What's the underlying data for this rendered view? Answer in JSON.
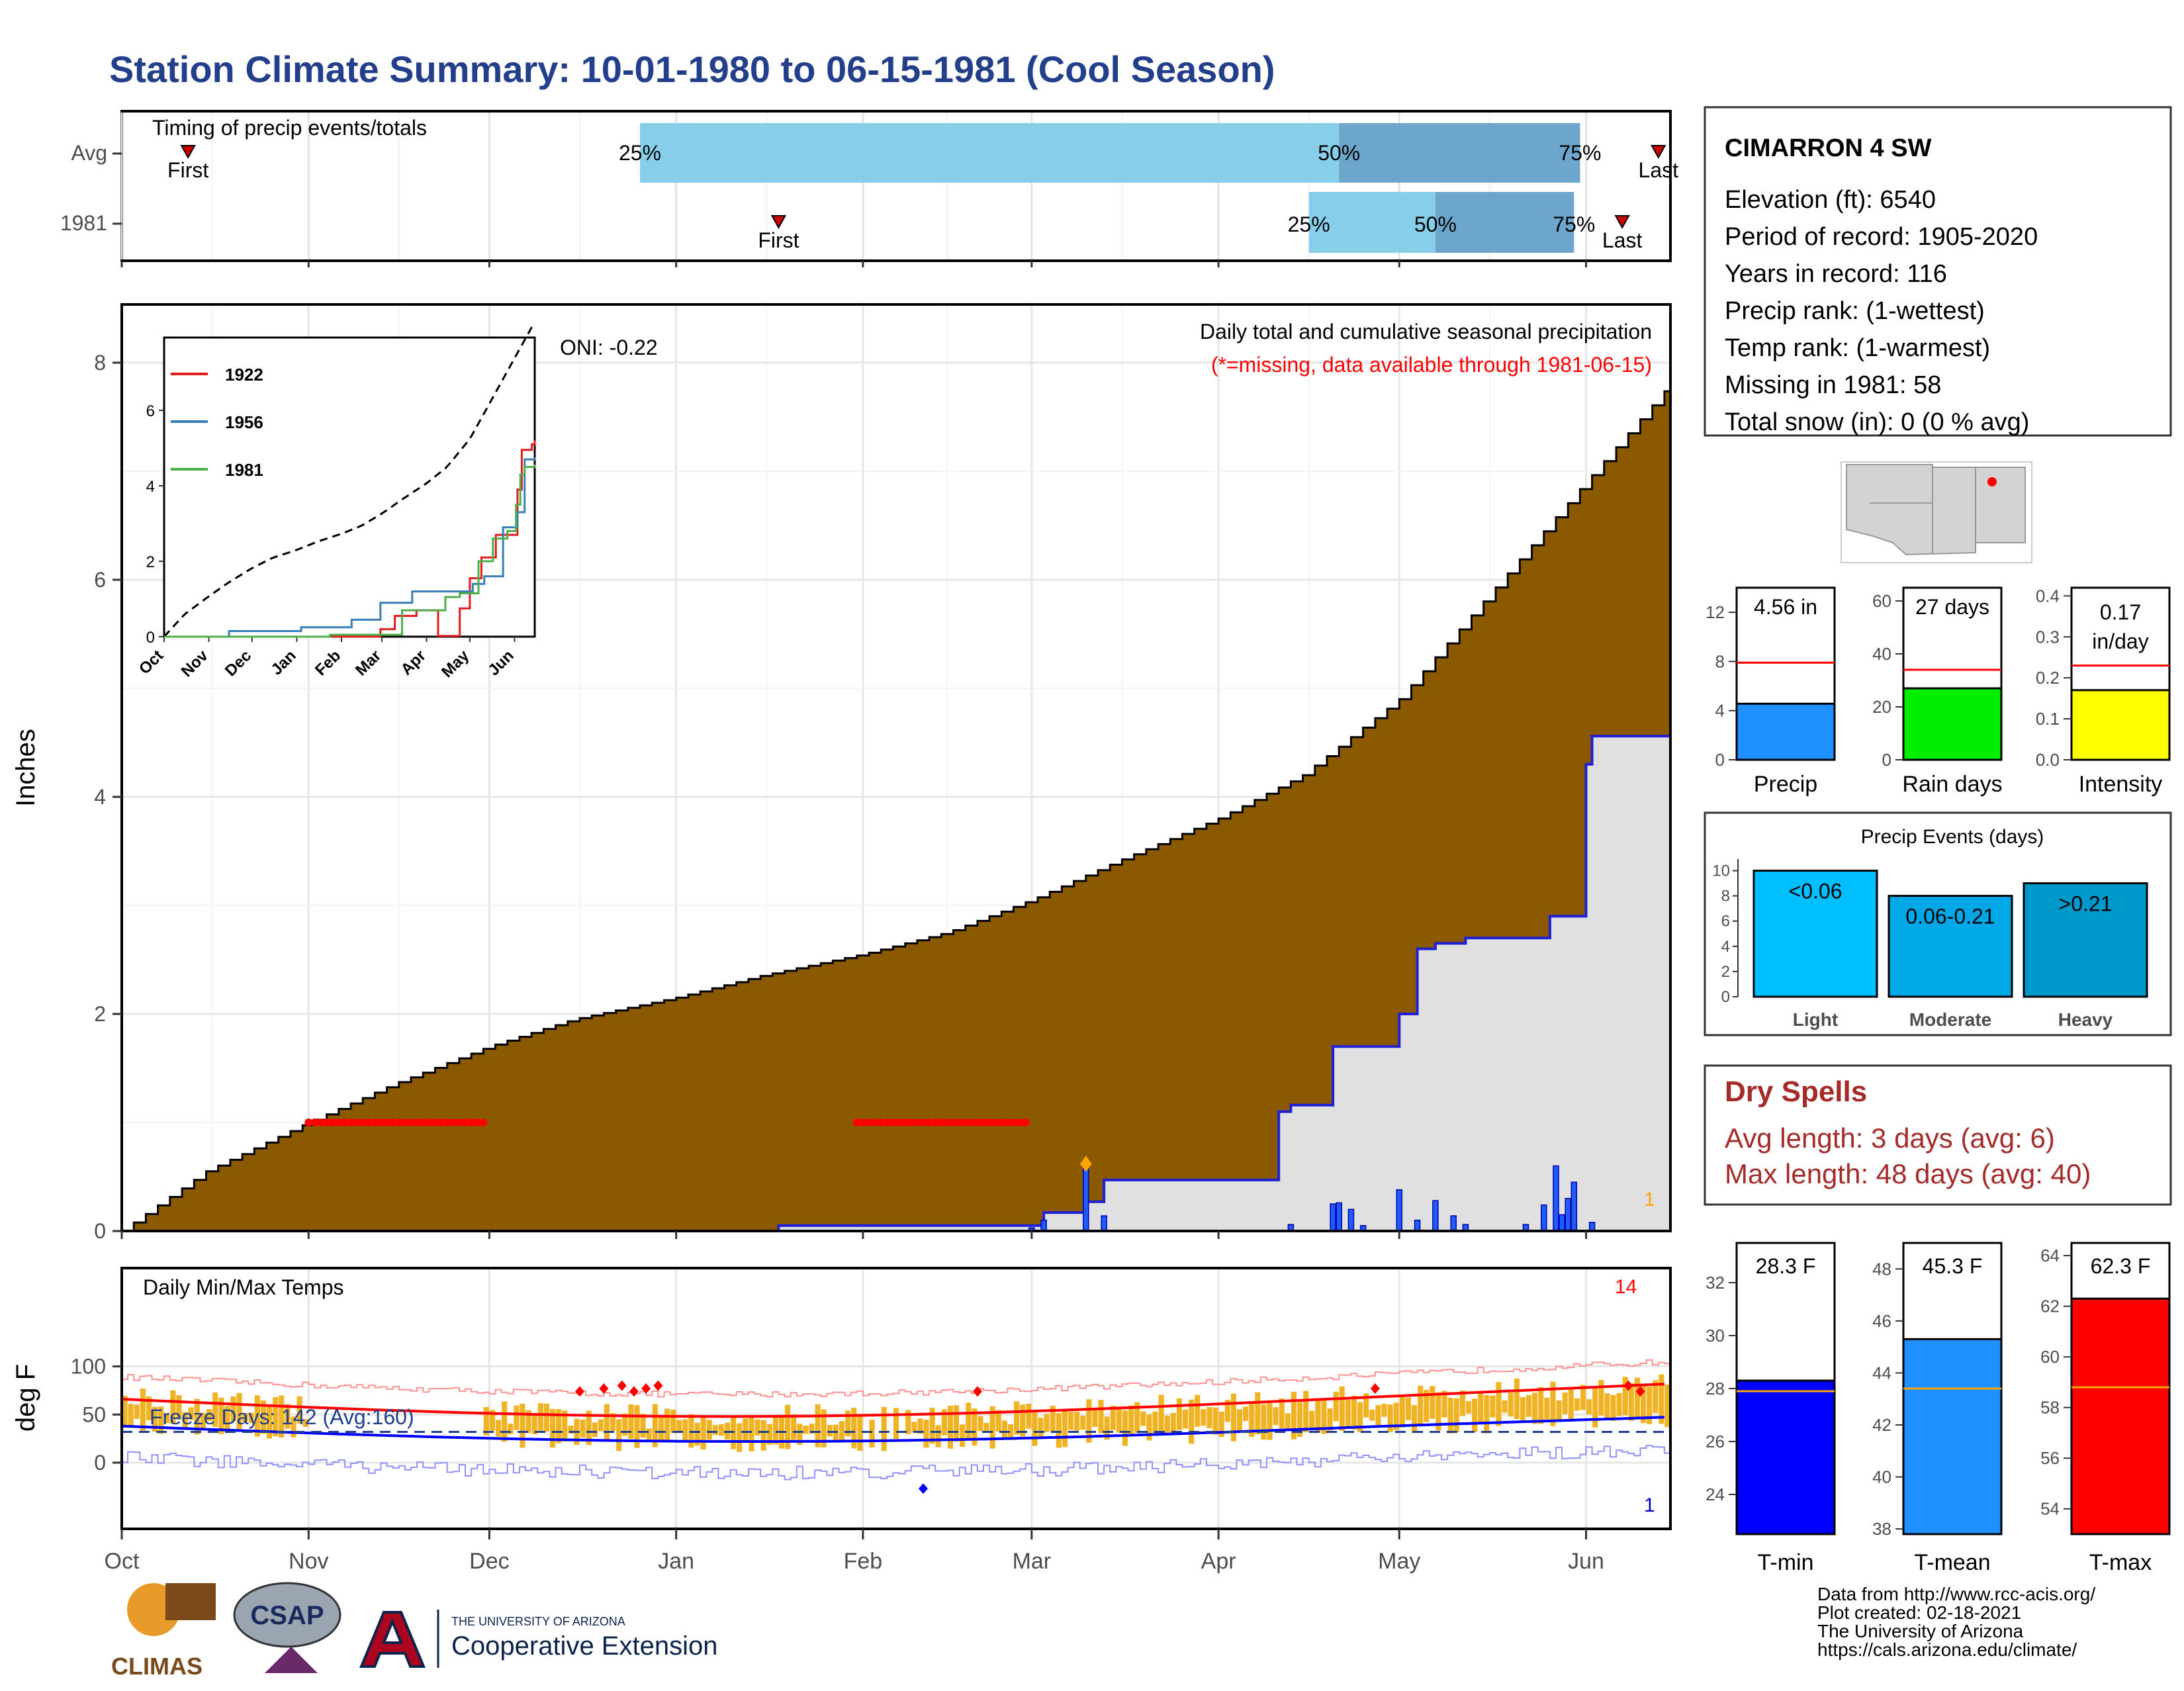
{
  "title": "Station Climate Summary: 10-01-1980 to 06-15-1981 (Cool Season)",
  "colors": {
    "title": "#233f8c",
    "precip_fill": "#8b5a00",
    "climo_fill": "#e0e0e0",
    "blue_line": "#1f1fd6",
    "band_light": "#87ceeb",
    "band_dark": "#6ca6cd",
    "temp_bar": "#f0b323",
    "dry_spell": "#a52a2a",
    "missing": "#ff0000"
  },
  "timing_panel": {
    "heading": "Timing of precip events/totals",
    "rows": [
      "Avg",
      "1981"
    ],
    "first_label": "First",
    "last_label": "Last",
    "pct_labels": [
      "25%",
      "50%",
      "75%"
    ],
    "avg": {
      "first": "1980-10-12",
      "p25": "1980-12-26",
      "p50": "1981-04-21",
      "p75": "1981-05-31",
      "last": "1981-06-13"
    },
    "yr": {
      "first": "1981-01-18",
      "p25": "1981-04-16",
      "p50": "1981-05-07",
      "p75": "1981-05-30",
      "last": "1981-06-07"
    }
  },
  "main_panel": {
    "ylabel": "Inches",
    "header": "Daily total and cumulative seasonal precipitation",
    "missing_note": "(*=missing, data available through 1981-06-15)",
    "oni": "ONI: -0.22",
    "yticks": [
      "0",
      "2",
      "4",
      "6",
      "8"
    ],
    "corner_count": "1"
  },
  "inset": {
    "legend": [
      "1922",
      "1956",
      "1981"
    ],
    "legend_colors": [
      "#e41a1c",
      "#377eb8",
      "#4daf4a"
    ],
    "months": [
      "Oct",
      "Nov",
      "Dec",
      "Jan",
      "Feb",
      "Mar",
      "Apr",
      "May",
      "Jun"
    ],
    "yticks": [
      "0",
      "2",
      "4",
      "6"
    ]
  },
  "temp_panel": {
    "ylabel": "deg F",
    "heading": "Daily Min/Max Temps",
    "freeze": "Freeze Days: 142 (Avg:160)",
    "yticks": [
      "0",
      "50",
      "100"
    ],
    "hot_count": "14",
    "cold_count": "1"
  },
  "months": [
    "Oct",
    "Nov",
    "Dec",
    "Jan",
    "Feb",
    "Mar",
    "Apr",
    "May",
    "Jun"
  ],
  "station": {
    "name": "CIMARRON 4 SW",
    "lines": [
      "Elevation (ft): 6540",
      "Period of record: 1905-2020",
      "Years in record: 116",
      "Precip rank:  (1-wettest)",
      "Temp rank:  (1-warmest)",
      "Missing in 1981: 58",
      "Total snow (in): 0 (0 % avg)"
    ]
  },
  "mini_bars": [
    {
      "label": "Precip",
      "value_text": "4.56 in",
      "value": 4.56,
      "avg": 7.9,
      "ymax": 14,
      "ticks": [
        "0",
        "4",
        "8",
        "12"
      ],
      "color": "#1e90ff"
    },
    {
      "label": "Rain days",
      "value_text": "27 days",
      "value": 27,
      "avg": 34,
      "ymax": 65,
      "ticks": [
        "0",
        "20",
        "40",
        "60"
      ],
      "color": "#00ee00"
    },
    {
      "label": "Intensity",
      "value_text": "0.17 in/day",
      "value": 0.17,
      "avg": 0.23,
      "ymax": 0.42,
      "ticks": [
        "0.0",
        "0.1",
        "0.2",
        "0.3",
        "0.4"
      ],
      "color": "#ffff00"
    }
  ],
  "events": {
    "title": "Precip Events (days)",
    "categories": [
      "Light",
      "Moderate",
      "Heavy"
    ],
    "range_labels": [
      "<0.06",
      "0.06-0.21",
      ">0.21"
    ],
    "values": [
      10,
      8,
      9
    ],
    "ticks": [
      "0",
      "2",
      "4",
      "6",
      "8",
      "10"
    ],
    "colors": [
      "#00bfff",
      "#00a8e8",
      "#0099cc"
    ]
  },
  "dry_spells": {
    "title": "Dry Spells",
    "avg_line": "Avg length: 3 days (avg: 6)",
    "max_line": "Max length: 48 days (avg: 40)"
  },
  "temp_bars": [
    {
      "label": "T-min",
      "value_text": "28.3 F",
      "value": 28.3,
      "avg": 27.9,
      "ymin": 22.5,
      "ymax": 33.5,
      "ticks": [
        "24",
        "26",
        "28",
        "30",
        "32"
      ],
      "color": "#0000ff"
    },
    {
      "label": "T-mean",
      "value_text": "45.3 F",
      "value": 45.3,
      "avg": 43.4,
      "ymin": 37.8,
      "ymax": 49,
      "ticks": [
        "38",
        "40",
        "42",
        "44",
        "46",
        "48"
      ],
      "color": "#1e90ff"
    },
    {
      "label": "T-max",
      "value_text": "62.3 F",
      "value": 62.3,
      "avg": 58.8,
      "ymin": 53,
      "ymax": 64.5,
      "ticks": [
        "54",
        "56",
        "58",
        "60",
        "62",
        "64"
      ],
      "color": "#ff0000"
    }
  ],
  "footer": {
    "lines": [
      "Data from http://www.rcc-acis.org/",
      "Plot created: 02-18-2021",
      "The University of Arizona",
      "https://cals.arizona.edu/climate/"
    ],
    "climas": "CLIMAS",
    "csap": "CSAP",
    "ua_small": "THE UNIVERSITY OF ARIZONA",
    "ua_big": "Cooperative Extension"
  },
  "chart_data": {
    "type": "area",
    "title": "Daily total and cumulative seasonal precipitation",
    "ylabel": "Inches",
    "ylim": [
      0,
      8.6
    ],
    "x_range": [
      "1980-10-01",
      "1981-06-15"
    ],
    "series": [
      {
        "name": "climatology",
        "x": [
          "1980-10-01",
          "1980-10-15",
          "1980-11-01",
          "1980-11-15",
          "1980-12-01",
          "1980-12-15",
          "1981-01-01",
          "1981-01-15",
          "1981-02-01",
          "1981-02-15",
          "1981-03-01",
          "1981-03-15",
          "1981-04-01",
          "1981-04-15",
          "1981-05-01",
          "1981-05-15",
          "1981-06-01",
          "1981-06-15"
        ],
        "y": [
          0,
          0.55,
          1.0,
          1.35,
          1.7,
          1.95,
          2.15,
          2.35,
          2.55,
          2.75,
          3.05,
          3.4,
          3.8,
          4.2,
          4.9,
          5.8,
          6.9,
          7.8
        ]
      },
      {
        "name": "1981",
        "x": [
          "1981-01-18",
          "1981-02-27",
          "1981-03-03",
          "1981-03-10",
          "1981-03-13",
          "1981-04-11",
          "1981-04-13",
          "1981-04-20",
          "1981-05-01",
          "1981-05-04",
          "1981-05-07",
          "1981-05-12",
          "1981-05-26",
          "1981-06-01",
          "1981-06-02",
          "1981-06-15"
        ],
        "y": [
          0.05,
          0.05,
          0.17,
          0.27,
          0.47,
          1.1,
          1.16,
          1.7,
          2.0,
          2.6,
          2.65,
          2.7,
          2.9,
          4.3,
          4.56,
          4.56
        ]
      }
    ],
    "daily_precip_1981": {
      "x": [
        "1981-03-01",
        "1981-03-03",
        "1981-03-10",
        "1981-03-13",
        "1981-04-13",
        "1981-04-20",
        "1981-04-21",
        "1981-04-23",
        "1981-04-25",
        "1981-05-01",
        "1981-05-04",
        "1981-05-07",
        "1981-05-10",
        "1981-05-12",
        "1981-05-22",
        "1981-05-25",
        "1981-05-27",
        "1981-05-28",
        "1981-05-29",
        "1981-05-30",
        "1981-06-02"
      ],
      "y": [
        0.03,
        0.1,
        0.62,
        0.14,
        0.06,
        0.25,
        0.26,
        0.2,
        0.05,
        0.38,
        0.1,
        0.28,
        0.14,
        0.06,
        0.06,
        0.24,
        0.6,
        0.15,
        0.3,
        0.45,
        0.08
      ]
    },
    "missing_ranges": [
      [
        "1980-11-01",
        "1980-11-30"
      ],
      [
        "1981-01-31",
        "1981-02-28"
      ]
    ]
  }
}
